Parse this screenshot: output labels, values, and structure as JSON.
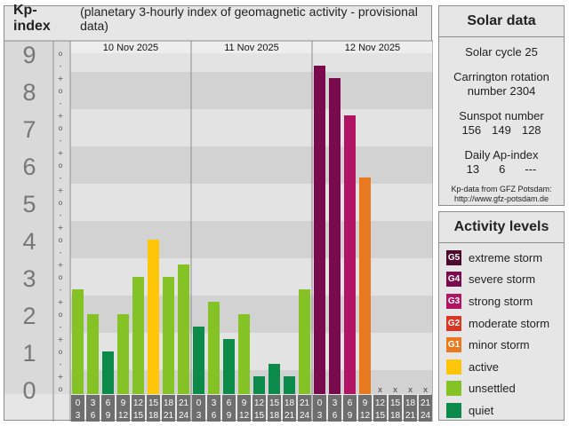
{
  "header": {
    "title": "Kp-index",
    "subtitle": "(planetary 3-hourly index of geomagnetic activity - provisional data)"
  },
  "chart_data": {
    "type": "bar",
    "title": "Kp-index",
    "subtitle": "(planetary 3-hourly index of geomagnetic activity - provisional data)",
    "ylim": [
      0,
      9
    ],
    "y_ticks": [
      "0",
      "1",
      "2",
      "3",
      "4",
      "5",
      "6",
      "7",
      "8",
      "9"
    ],
    "minor_ticks": [
      "+",
      "o",
      "-"
    ],
    "days": [
      "10 Nov 2025",
      "11 Nov 2025",
      "12 Nov 2025"
    ],
    "interval_start": [
      "0",
      "3",
      "6",
      "9",
      "12",
      "15",
      "18",
      "21"
    ],
    "interval_end": [
      "3",
      "6",
      "9",
      "12",
      "15",
      "18",
      "21",
      "24"
    ],
    "missing_marker": "x",
    "values": [
      [
        2.667,
        2.0,
        1.0,
        2.0,
        3.0,
        4.0,
        3.0,
        3.333
      ],
      [
        1.667,
        2.333,
        1.333,
        2.0,
        0.333,
        0.667,
        0.333,
        2.667
      ],
      [
        8.667,
        8.333,
        7.333,
        5.667,
        null,
        null,
        null,
        null
      ]
    ],
    "colors": {
      "quiet": "#0b8a4a",
      "unsettled": "#84c225",
      "active": "#fdc60b",
      "minor": "#e9791e",
      "moderate": "#db3523",
      "strong": "#b01463",
      "severe": "#7a0a4e",
      "extreme": "#4e0a2c"
    }
  },
  "solar": {
    "title": "Solar data",
    "cycle": "Solar cycle 25",
    "carrington_label": "Carrington rotation",
    "carrington_number": "number 2304",
    "sunspot_label": "Sunspot number",
    "sunspot_values": [
      "156",
      "149",
      "128"
    ],
    "ap_label": "Daily Ap-index",
    "ap_values": [
      "13",
      "6",
      "---"
    ],
    "source_line1": "Kp-data from  GFZ Potsdam:",
    "source_line2": "http://www.gfz-potsdam.de"
  },
  "activity": {
    "title": "Activity levels",
    "items": [
      {
        "code": "G5",
        "label": "extreme storm",
        "color": "#4e0a2c"
      },
      {
        "code": "G4",
        "label": "severe storm",
        "color": "#7a0a4e"
      },
      {
        "code": "G3",
        "label": "strong storm",
        "color": "#b01463"
      },
      {
        "code": "G2",
        "label": "moderate storm",
        "color": "#db3523"
      },
      {
        "code": "G1",
        "label": "minor storm",
        "color": "#e9791e"
      },
      {
        "code": "",
        "label": "active",
        "color": "#fdc60b"
      },
      {
        "code": "",
        "label": "unsettled",
        "color": "#84c225"
      },
      {
        "code": "",
        "label": "quiet",
        "color": "#0b8a4a"
      }
    ]
  }
}
